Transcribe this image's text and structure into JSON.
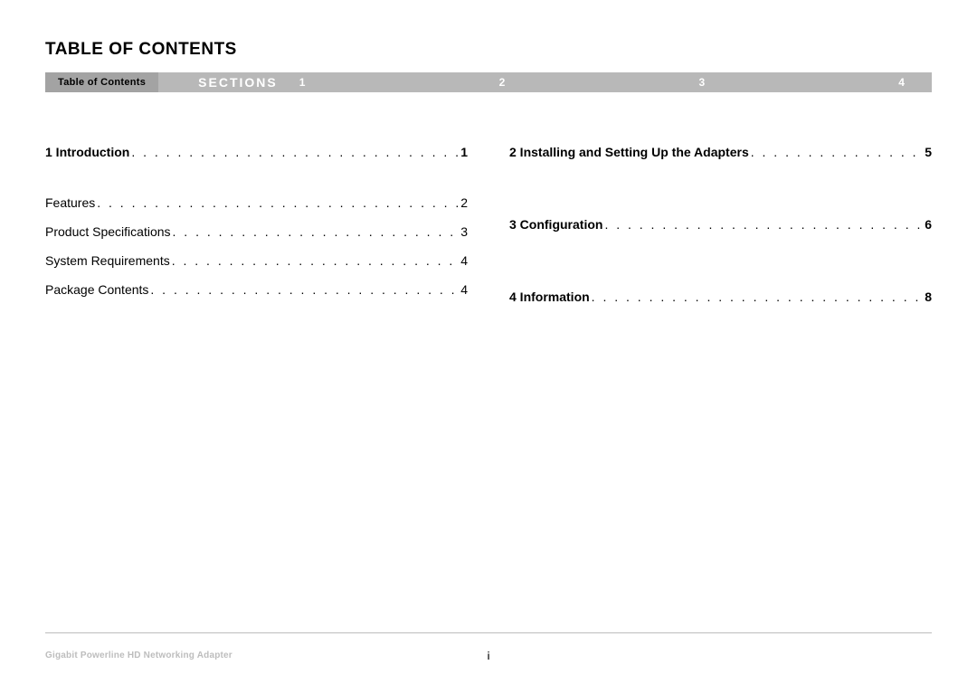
{
  "title": "TABLE OF CONTENTS",
  "nav": {
    "toc_label": "Table of Contents",
    "sections_label": "SECTIONS",
    "numbers": [
      "1",
      "2",
      "3",
      "4"
    ]
  },
  "left_column": {
    "heading": {
      "label": "1 Introduction",
      "page": "1"
    },
    "items": [
      {
        "label": "Features",
        "page": "2"
      },
      {
        "label": "Product Specifications",
        "page": "3"
      },
      {
        "label": "System Requirements",
        "page": "4"
      },
      {
        "label": "Package Contents",
        "page": "4"
      }
    ]
  },
  "right_column": {
    "items": [
      {
        "label": "2 Installing and Setting Up the Adapters",
        "page": "5"
      },
      {
        "label": "3 Configuration",
        "page": "6"
      },
      {
        "label": "4 Information",
        "page": "8"
      }
    ]
  },
  "footer": {
    "product": "Gigabit Powerline HD Networking Adapter",
    "page_number": "i"
  }
}
